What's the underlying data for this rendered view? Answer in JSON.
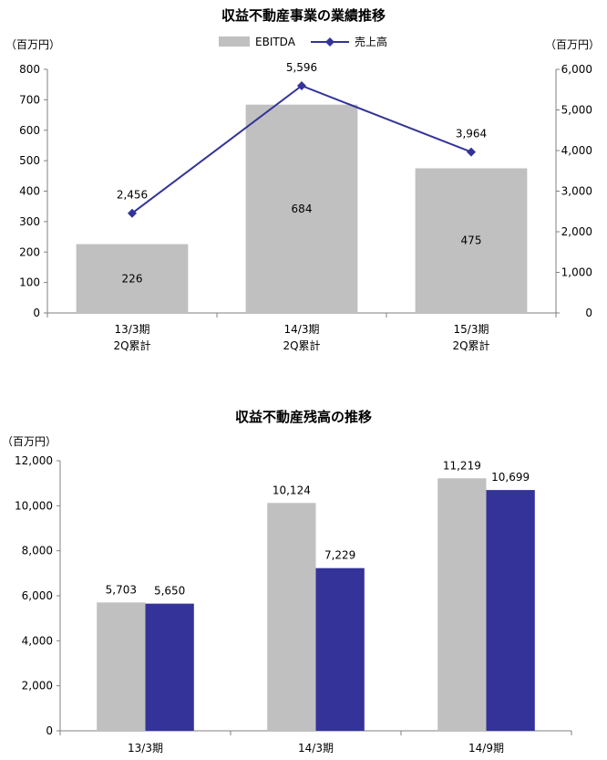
{
  "chart_data": [
    {
      "type": "bar",
      "title": "収益不動産事業の業績推移",
      "left_unit": "（百万円）",
      "right_unit": "（百万円）",
      "categories": [
        [
          "13/3期",
          "2Q累計"
        ],
        [
          "14/3期",
          "2Q累計"
        ],
        [
          "15/3期",
          "2Q累計"
        ]
      ],
      "series": [
        {
          "name": "EBITDA",
          "type": "bar",
          "axis": "left",
          "values": [
            226,
            684,
            475
          ],
          "labels": [
            "226",
            "684",
            "475"
          ],
          "color": "#c0c0c0"
        },
        {
          "name": "売上高",
          "type": "line",
          "axis": "right",
          "values": [
            2456,
            5596,
            3964
          ],
          "labels": [
            "2,456",
            "5,596",
            "3,964"
          ],
          "color": "#333399"
        }
      ],
      "left_axis": {
        "ylim": [
          0,
          800
        ],
        "ticks": [
          "0",
          "100",
          "200",
          "300",
          "400",
          "500",
          "600",
          "700",
          "800"
        ]
      },
      "right_axis": {
        "ylim": [
          0,
          6000
        ],
        "ticks": [
          "0",
          "1,000",
          "2,000",
          "3,000",
          "4,000",
          "5,000",
          "6,000"
        ]
      },
      "legend": "top-center",
      "grid": false
    },
    {
      "type": "bar",
      "title": "収益不動産残高の推移",
      "left_unit": "（百万円）",
      "categories": [
        "13/3期",
        "14/3期",
        "14/9期"
      ],
      "series": [
        {
          "values": [
            5703,
            10124,
            11219
          ],
          "labels": [
            "5,703",
            "10,124",
            "11,219"
          ],
          "color": "#c0c0c0"
        },
        {
          "values": [
            5650,
            7229,
            10699
          ],
          "labels": [
            "5,650",
            "7,229",
            "10,699"
          ],
          "color": "#333399"
        }
      ],
      "left_axis": {
        "ylim": [
          0,
          12000
        ],
        "ticks": [
          "0",
          "2,000",
          "4,000",
          "6,000",
          "8,000",
          "10,000",
          "12,000"
        ]
      },
      "grid": false
    }
  ]
}
